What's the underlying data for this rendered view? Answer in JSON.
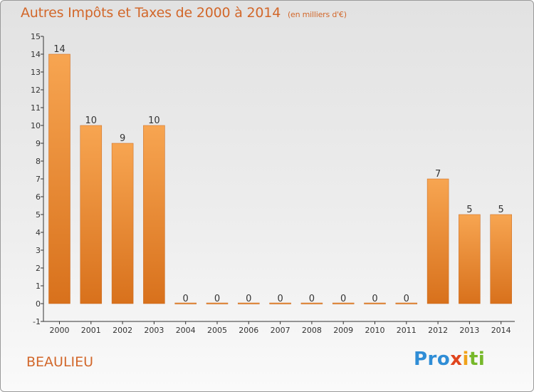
{
  "title": "Autres Impôts et Taxes de 2000 à 2014",
  "title_unit": "(en milliers d'€)",
  "commune": "BEAULIEU",
  "logo": [
    "Pro",
    "x",
    "i",
    "ti"
  ],
  "colors": {
    "title": "#d2672a",
    "bar_top": "#f7a551",
    "bar_bottom": "#d8711c",
    "axis": "#333333"
  },
  "chart_data": {
    "type": "bar",
    "title": "Autres Impôts et Taxes de 2000 à 2014",
    "subtitle": "(en milliers d'€)",
    "categories": [
      "2000",
      "2001",
      "2002",
      "2003",
      "2004",
      "2005",
      "2006",
      "2007",
      "2008",
      "2009",
      "2010",
      "2011",
      "2012",
      "2013",
      "2014"
    ],
    "values": [
      14,
      10,
      9,
      10,
      0,
      0,
      0,
      0,
      0,
      0,
      0,
      0,
      7,
      5,
      5
    ],
    "data_labels": [
      "14",
      "10",
      "9",
      "10",
      "0",
      "0",
      "0",
      "0",
      "0",
      "0",
      "0",
      "0",
      "7",
      "5",
      "5"
    ],
    "y_ticks": [
      "-1",
      "0",
      "1",
      "2",
      "3",
      "4",
      "5",
      "6",
      "7",
      "8",
      "9",
      "10",
      "11",
      "12",
      "13",
      "14",
      "15"
    ],
    "ylim": [
      -1,
      15
    ],
    "xlabel": "",
    "ylabel": "",
    "grid": false,
    "legend": "none"
  }
}
